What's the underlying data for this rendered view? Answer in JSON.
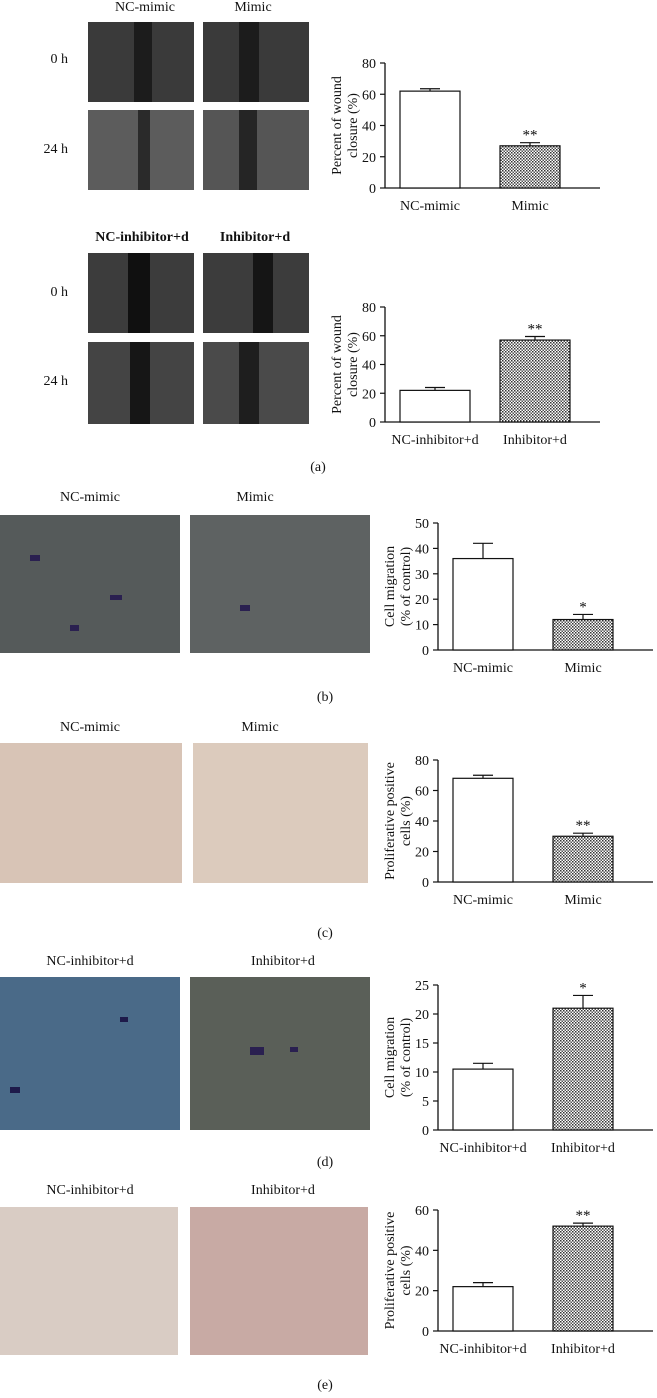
{
  "panels": {
    "a": {
      "caption": "(a)",
      "top": {
        "col_labels": [
          "NC-mimic",
          "Mimic"
        ],
        "row_labels": [
          "0 h",
          "24 h"
        ]
      },
      "bottom": {
        "col_labels": [
          "NC-inhibitor+d",
          "Inhibitor+d"
        ],
        "row_labels": [
          "0 h",
          "24 h"
        ]
      }
    },
    "b": {
      "caption": "(b)",
      "col_labels": [
        "NC-mimic",
        "Mimic"
      ]
    },
    "c": {
      "caption": "(c)",
      "col_labels": [
        "NC-mimic",
        "Mimic"
      ]
    },
    "d": {
      "caption": "(d)",
      "col_labels": [
        "NC-inhibitor+d",
        "Inhibitor+d"
      ]
    },
    "e": {
      "caption": "(e)",
      "col_labels": [
        "NC-inhibitor+d",
        "Inhibitor+d"
      ]
    }
  },
  "chart_data": [
    {
      "id": "a-top",
      "type": "bar",
      "categories": [
        "NC-mimic",
        "Mimic"
      ],
      "values": [
        62,
        27
      ],
      "errors": [
        1.5,
        2
      ],
      "significance": [
        "",
        "**"
      ],
      "ylabel": "Percent of wound closure (%)",
      "ylim": [
        0,
        80
      ],
      "yticks": [
        0,
        20,
        40,
        60,
        80
      ]
    },
    {
      "id": "a-bottom",
      "type": "bar",
      "categories": [
        "NC-inhibitor+d",
        "Inhibitor+d"
      ],
      "values": [
        22,
        57
      ],
      "errors": [
        2,
        2.5
      ],
      "significance": [
        "",
        "**"
      ],
      "ylabel": "Percent of wound closure (%)",
      "ylim": [
        0,
        80
      ],
      "yticks": [
        0,
        20,
        40,
        60,
        80
      ]
    },
    {
      "id": "b",
      "type": "bar",
      "categories": [
        "NC-mimic",
        "Mimic"
      ],
      "values": [
        36,
        12
      ],
      "errors": [
        6,
        2
      ],
      "significance": [
        "",
        "*"
      ],
      "ylabel": "Cell migration (% of control)",
      "ylim": [
        0,
        50
      ],
      "yticks": [
        0,
        10,
        20,
        30,
        40,
        50
      ]
    },
    {
      "id": "c",
      "type": "bar",
      "categories": [
        "NC-mimic",
        "Mimic"
      ],
      "values": [
        68,
        30
      ],
      "errors": [
        2,
        2
      ],
      "significance": [
        "",
        "**"
      ],
      "ylabel": "Proliferative positive cells (%)",
      "ylim": [
        0,
        80
      ],
      "yticks": [
        0,
        20,
        40,
        60,
        80
      ]
    },
    {
      "id": "d",
      "type": "bar",
      "categories": [
        "NC-inhibitor+d",
        "Inhibitor+d"
      ],
      "values": [
        10.5,
        21
      ],
      "errors": [
        1,
        2.2
      ],
      "significance": [
        "",
        "*"
      ],
      "ylabel": "Cell migration (% of control)",
      "ylim": [
        0,
        25
      ],
      "yticks": [
        0,
        5,
        10,
        15,
        20,
        25
      ]
    },
    {
      "id": "e",
      "type": "bar",
      "categories": [
        "NC-inhibitor+d",
        "Inhibitor+d"
      ],
      "values": [
        22,
        52
      ],
      "errors": [
        2,
        1.5
      ],
      "significance": [
        "",
        "**"
      ],
      "ylabel": "Proliferative positive cells (%)",
      "ylim": [
        0,
        60
      ],
      "yticks": [
        0,
        20,
        40,
        60
      ]
    }
  ]
}
